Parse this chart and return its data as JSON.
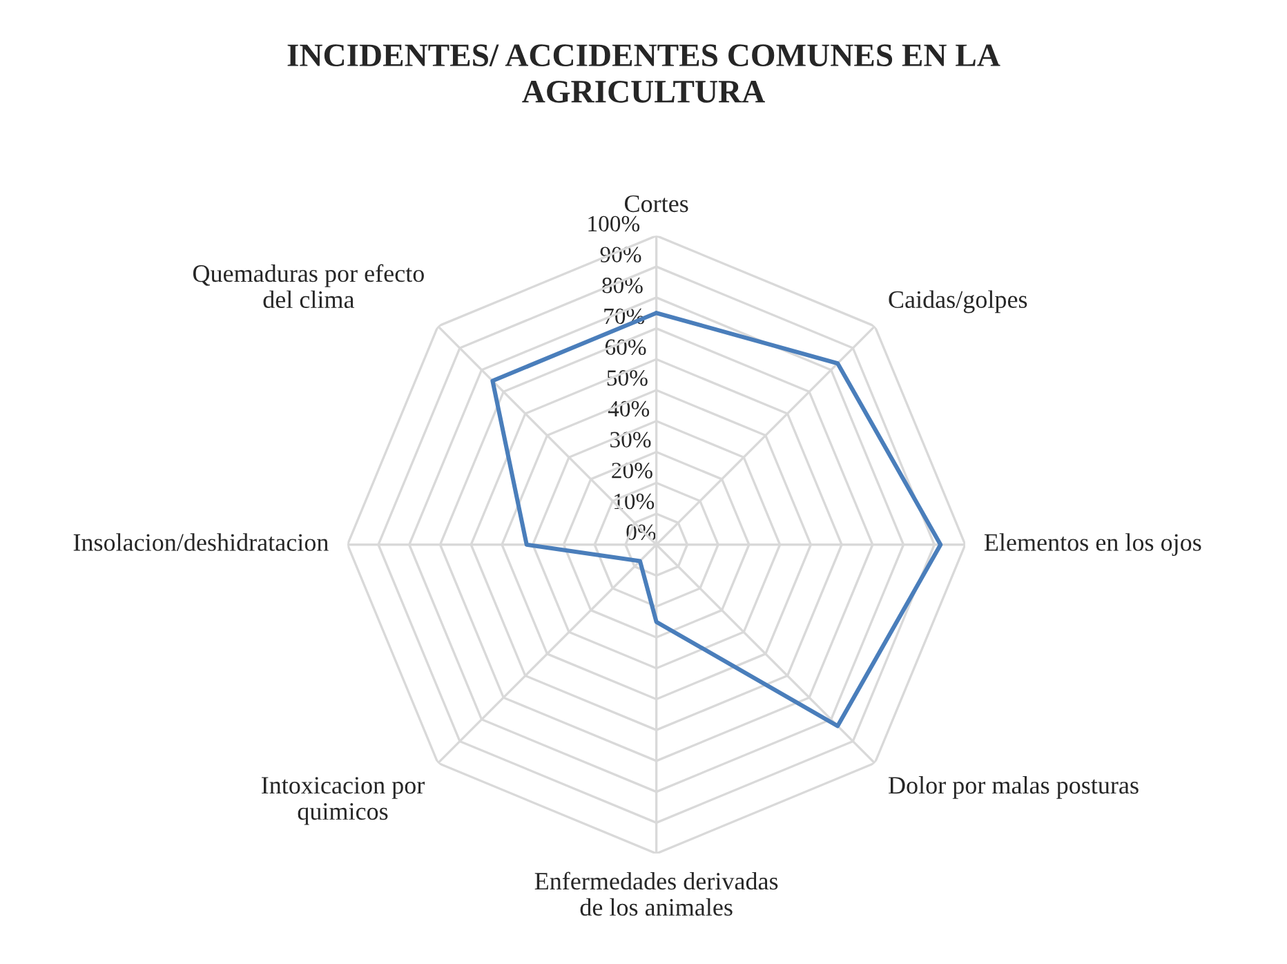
{
  "chart_data": {
    "type": "radar",
    "title": "INCIDENTES/ ACCIDENTES COMUNES EN LA\nAGRICULTURA",
    "categories": [
      "Cortes",
      "Caidas/golpes",
      "Elementos en los ojos",
      "Dolor por malas posturas",
      "Enfermedades derivadas\nde los animales",
      "Intoxicacion por\nquimicos",
      "Insolacion/deshidratacion",
      "Quemaduras por efecto\ndel clima"
    ],
    "series": [
      {
        "color": "#4a7ebb",
        "values": [
          75,
          83,
          92,
          83,
          25,
          7.5,
          42,
          75
        ]
      }
    ],
    "ylim": [
      0,
      100
    ],
    "yticks": [
      {
        "value": 0,
        "label": "0%"
      },
      {
        "value": 10,
        "label": "10%"
      },
      {
        "value": 20,
        "label": "20%"
      },
      {
        "value": 30,
        "label": "30%"
      },
      {
        "value": 40,
        "label": "40%"
      },
      {
        "value": 50,
        "label": "50%"
      },
      {
        "value": 60,
        "label": "60%"
      },
      {
        "value": 70,
        "label": "70%"
      },
      {
        "value": 80,
        "label": "80%"
      },
      {
        "value": 90,
        "label": "90%"
      },
      {
        "value": 100,
        "label": "100%"
      }
    ],
    "grid": true,
    "marker": "none",
    "line_style": "solid"
  }
}
